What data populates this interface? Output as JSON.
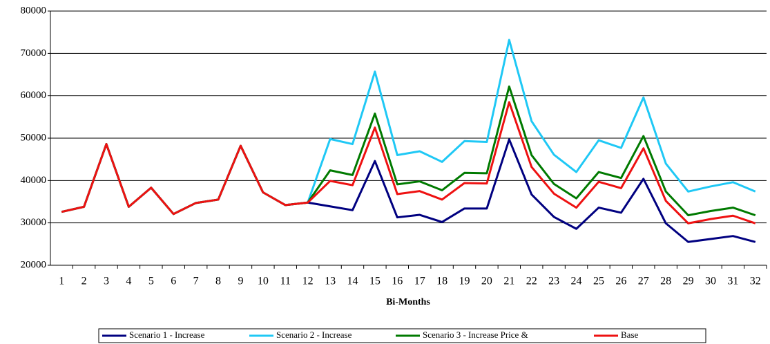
{
  "chart_data": {
    "type": "line",
    "x_label": "Bi-Months",
    "categories": [
      "1",
      "2",
      "3",
      "4",
      "5",
      "6",
      "7",
      "8",
      "9",
      "10",
      "11",
      "12",
      "13",
      "14",
      "15",
      "16",
      "17",
      "18",
      "19",
      "20",
      "21",
      "22",
      "23",
      "24",
      "25",
      "26",
      "27",
      "28",
      "29",
      "30",
      "31",
      "32"
    ],
    "series": [
      {
        "name": "Scenario 1 - Increase",
        "color": "#000080",
        "values": [
          32600,
          33800,
          48600,
          33800,
          38300,
          32100,
          34700,
          35500,
          48200,
          37200,
          34200,
          34800,
          33900,
          33000,
          44600,
          31300,
          31900,
          30200,
          33400,
          33400,
          49700,
          36700,
          31400,
          28600,
          33600,
          32400,
          40400,
          29900,
          25500,
          26200,
          26900,
          25500
        ]
      },
      {
        "name": "Scenario 2 - Increase",
        "color": "#1fc8f5",
        "values": [
          32600,
          33800,
          48600,
          33800,
          38300,
          32100,
          34700,
          35500,
          48200,
          37200,
          34200,
          34800,
          49800,
          48600,
          65700,
          46000,
          46900,
          44400,
          49300,
          49100,
          73200,
          54000,
          46100,
          42000,
          49500,
          47700,
          59600,
          44000,
          37400,
          38600,
          39600,
          37400
        ]
      },
      {
        "name": "Scenario 3 - Increase Price &",
        "color": "#007a00",
        "values": [
          32600,
          33800,
          48600,
          33800,
          38300,
          32100,
          34700,
          35500,
          48200,
          37200,
          34200,
          34800,
          42400,
          41300,
          55800,
          39100,
          39800,
          37700,
          41800,
          41700,
          62200,
          46000,
          39200,
          35800,
          42000,
          40600,
          50500,
          37400,
          31800,
          32800,
          33600,
          31800
        ]
      },
      {
        "name": "Base",
        "color": "#ee1111",
        "values": [
          32600,
          33800,
          48600,
          33800,
          38300,
          32100,
          34700,
          35500,
          48200,
          37200,
          34200,
          34800,
          39900,
          38900,
          52500,
          36800,
          37500,
          35500,
          39400,
          39300,
          58500,
          43200,
          36900,
          33600,
          39700,
          38200,
          47600,
          35200,
          29900,
          30900,
          31700,
          29900
        ]
      }
    ],
    "ylim": [
      20000,
      80000
    ],
    "yticks": [
      20000,
      30000,
      40000,
      50000,
      60000,
      70000,
      80000
    ],
    "grid": true
  }
}
